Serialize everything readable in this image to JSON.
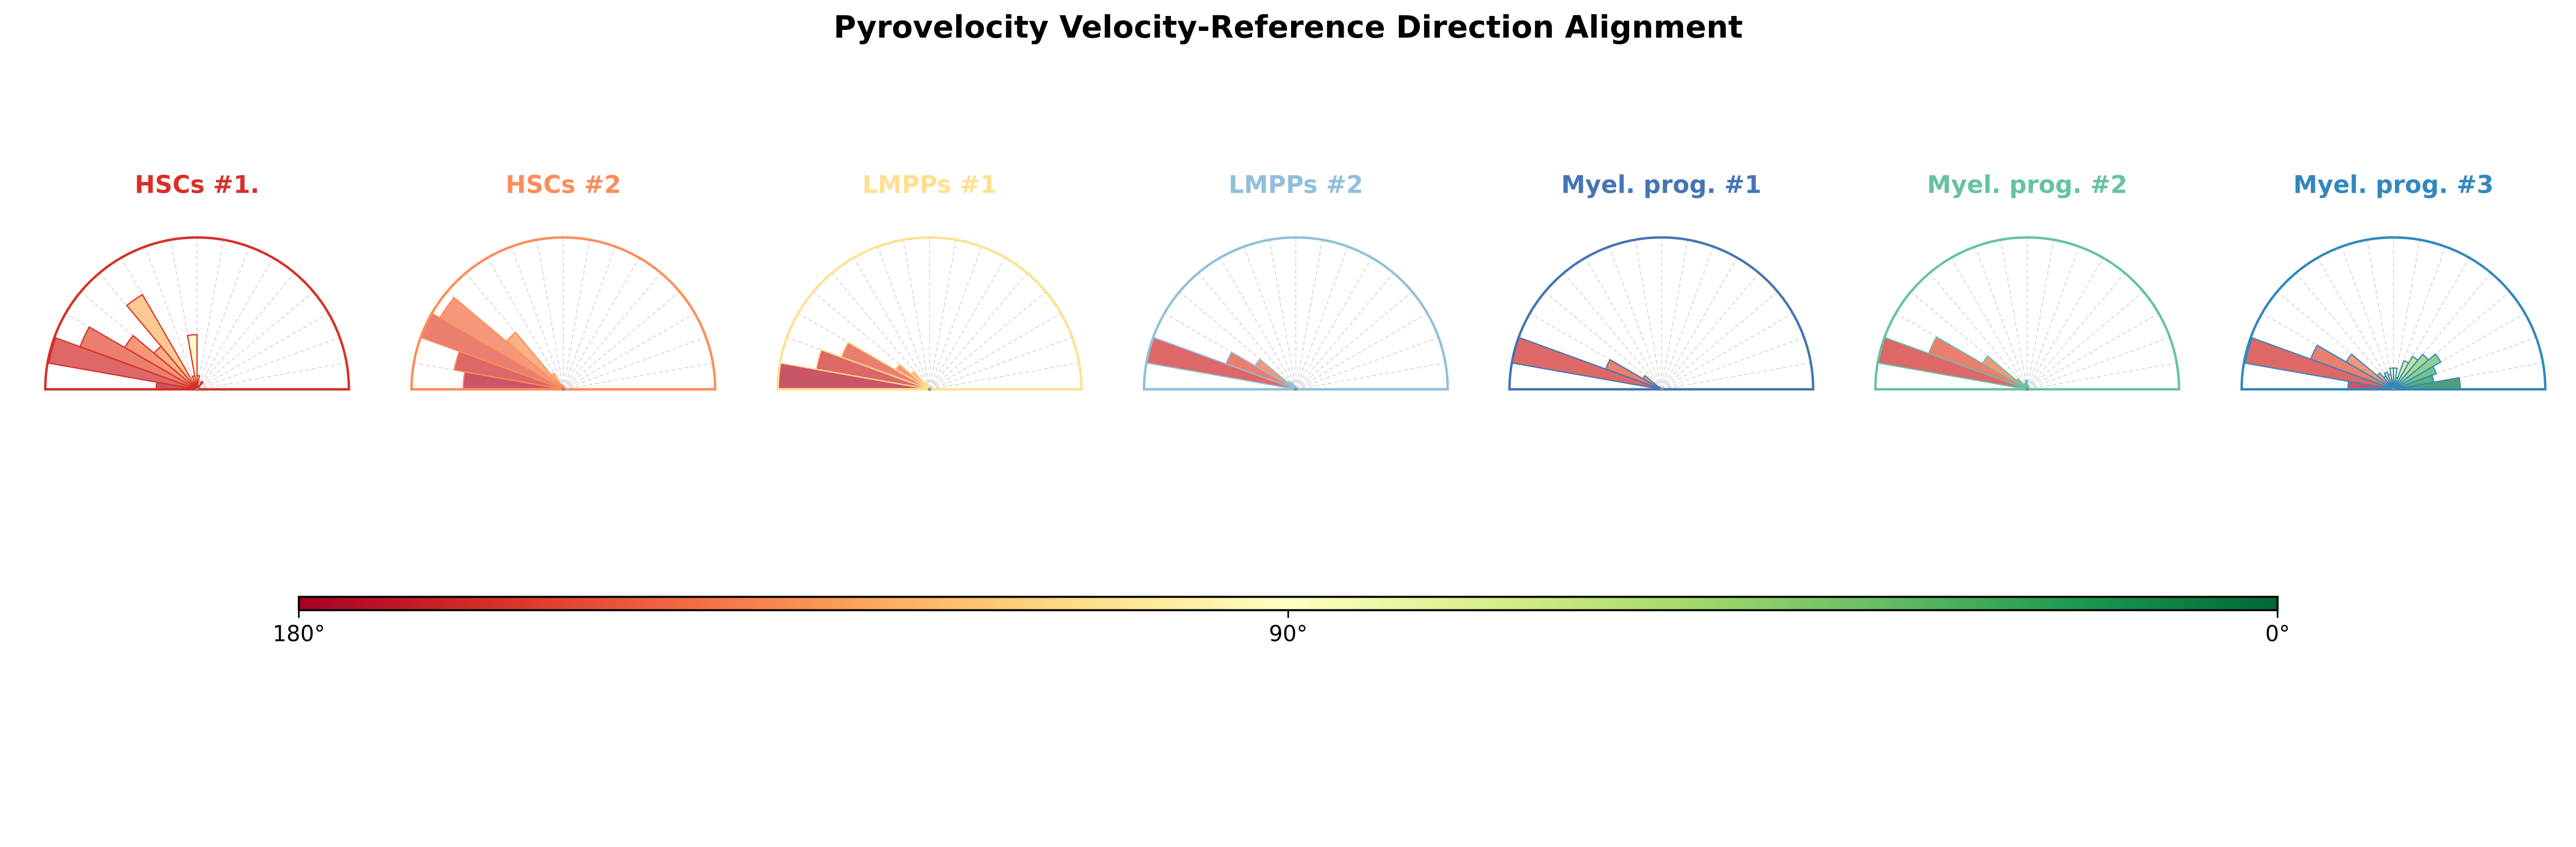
{
  "chart_data": {
    "type": "polar-histogram",
    "title": "Pyrovelocity Velocity-Reference Direction Alignment",
    "bin_edges_deg": [
      0,
      10,
      20,
      30,
      40,
      50,
      60,
      70,
      80,
      90,
      100,
      110,
      120,
      130,
      140,
      150,
      160,
      170,
      180
    ],
    "value_note": "bar lengths relative to the outer rim (1.0 = max)",
    "panels": [
      {
        "title": "HSCs #1.",
        "color": "#d73027",
        "values": [
          0,
          0,
          0,
          0,
          0,
          0.06,
          0,
          0,
          0.09,
          0.36,
          0.09,
          0,
          0.72,
          0.37,
          0.55,
          0.82,
          0.99,
          0.27
        ]
      },
      {
        "title": "HSCs #2",
        "color": "#fc8d59",
        "values": [
          0,
          0,
          0,
          0,
          0,
          0,
          0,
          0,
          0.02,
          0.02,
          0.03,
          0.03,
          0.12,
          0.49,
          0.94,
          1.0,
          0.73,
          0.66
        ]
      },
      {
        "title": "LMPPs #1",
        "color": "#fee090",
        "values": [
          0,
          0,
          0,
          0,
          0,
          0,
          0,
          0,
          0,
          0.02,
          0.03,
          0.05,
          0.05,
          0.16,
          0.26,
          0.62,
          0.76,
          1.0
        ]
      },
      {
        "title": "LMPPs #2",
        "color": "#91bfdb",
        "values": [
          0,
          0,
          0,
          0,
          0,
          0,
          0,
          0,
          0,
          0,
          0.02,
          0.03,
          0.05,
          0.07,
          0.31,
          0.49,
          1.0,
          0.0
        ]
      },
      {
        "title": "Myel. prog. #1",
        "color": "#4575b4",
        "values": [
          0,
          0,
          0,
          0,
          0,
          0,
          0,
          0,
          0,
          0,
          0,
          0,
          0,
          0.02,
          0.14,
          0.39,
          1.0,
          0.0
        ]
      },
      {
        "title": "Myel. prog. #2",
        "color": "#66c2a5",
        "values": [
          0,
          0,
          0,
          0,
          0,
          0,
          0.02,
          0.02,
          0.03,
          0.06,
          0.03,
          0.04,
          0.04,
          0.09,
          0.34,
          0.69,
          1.0,
          0.0
        ]
      },
      {
        "title": "Myel. prog. #3",
        "color": "#3288bd",
        "values": [
          0.44,
          0.27,
          0.3,
          0.36,
          0.3,
          0.25,
          0.2,
          0.08,
          0.14,
          0.14,
          0.1,
          0.12,
          0.1,
          0.14,
          0.36,
          0.58,
          0.99,
          0.3
        ]
      }
    ],
    "colorbar": {
      "colormap": "RdYlGn",
      "range_deg": [
        180,
        0
      ],
      "tick_labels": [
        "180°",
        "90°",
        "0°"
      ]
    }
  }
}
